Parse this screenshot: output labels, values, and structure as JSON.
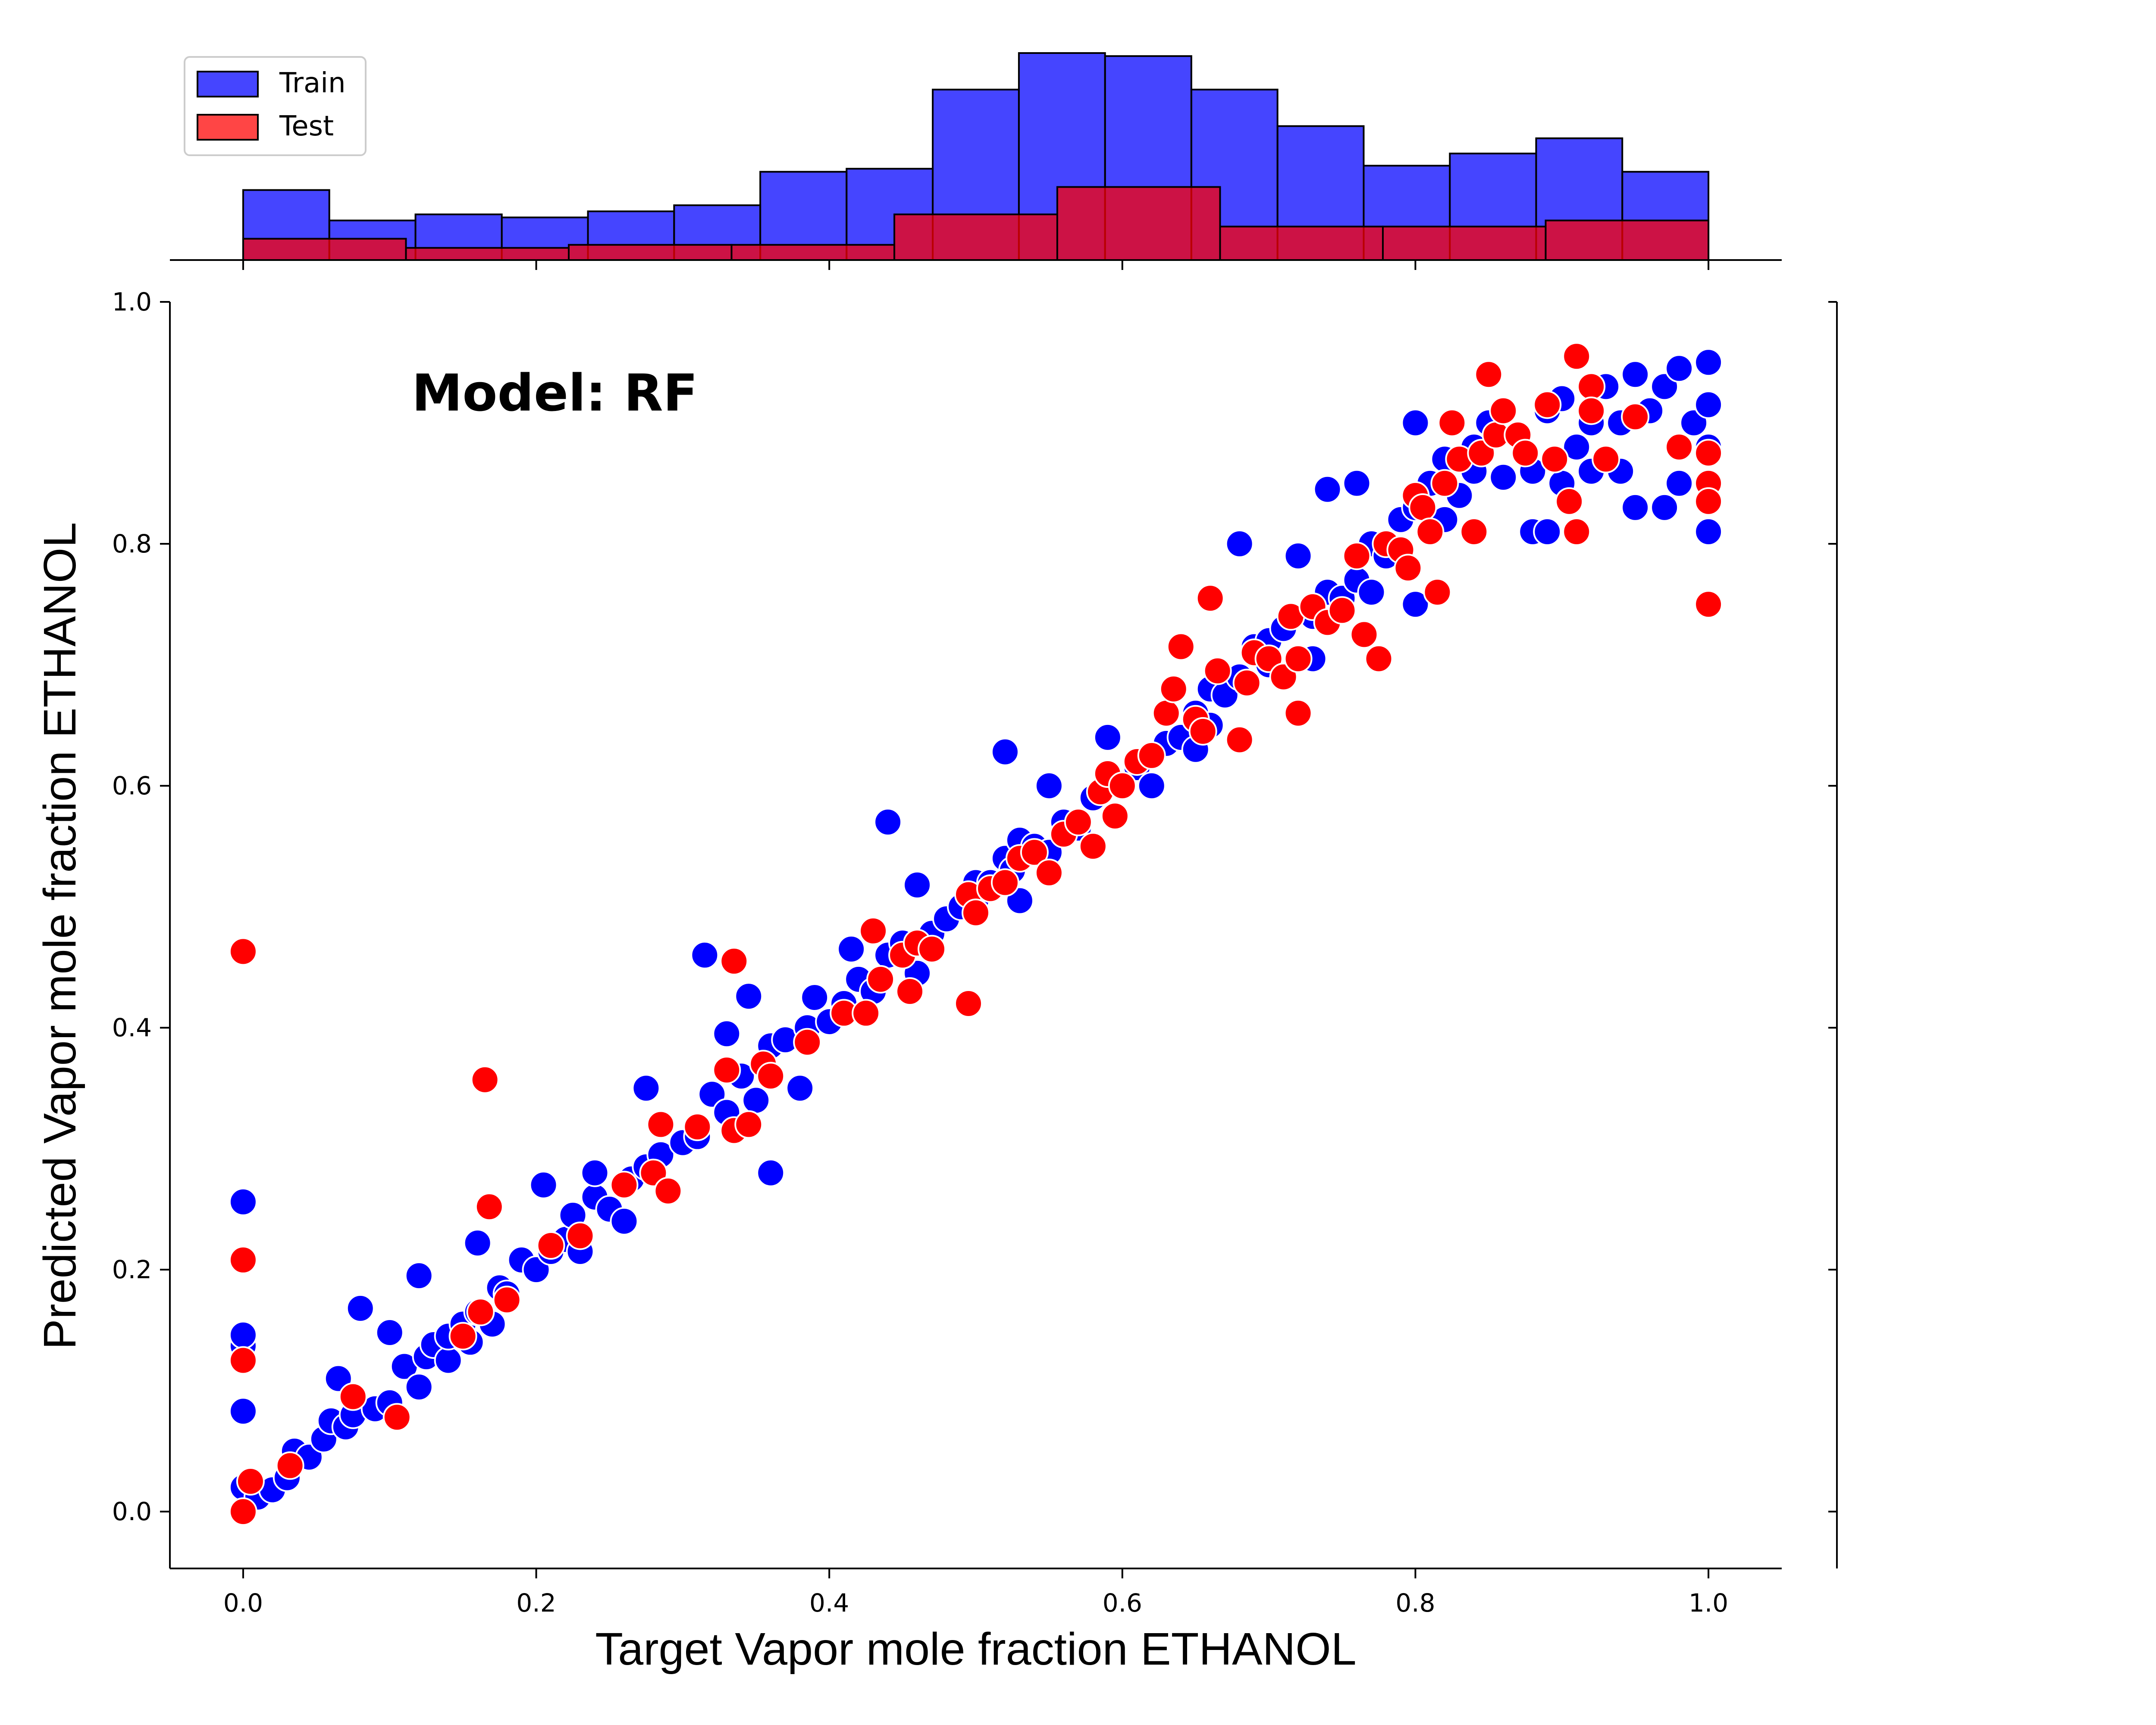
{
  "chart_data": {
    "type": "scatter",
    "xlabel": "Target Vapor mole fraction ETHANOL",
    "ylabel": "Predicted Vapor mole fraction ETHANOL",
    "annotation": "Model: RF",
    "xlim": [
      -0.05,
      1.05
    ],
    "ylim": [
      -0.047,
      1.0
    ],
    "x_ticks": [
      "0.0",
      "0.2",
      "0.4",
      "0.6",
      "0.8",
      "1.0"
    ],
    "y_ticks": [
      "0.0",
      "0.2",
      "0.4",
      "0.6",
      "0.8",
      "1.0"
    ],
    "grid": false,
    "legend": {
      "placement": "top-left of marginal histogram",
      "entries": [
        {
          "name": "Train",
          "color": "#0000ff"
        },
        {
          "name": "Test",
          "color": "#ff0000"
        }
      ]
    },
    "series": [
      {
        "name": "Train",
        "color": "#0000ff",
        "points": [
          [
            0.0,
            0.0
          ],
          [
            0.0,
            0.02
          ],
          [
            0.0,
            0.083
          ],
          [
            0.0,
            0.125
          ],
          [
            0.0,
            0.137
          ],
          [
            0.0,
            0.146
          ],
          [
            0.0,
            0.256
          ],
          [
            0.01,
            0.012
          ],
          [
            0.02,
            0.018
          ],
          [
            0.03,
            0.028
          ],
          [
            0.035,
            0.05
          ],
          [
            0.045,
            0.045
          ],
          [
            0.055,
            0.06
          ],
          [
            0.06,
            0.075
          ],
          [
            0.065,
            0.11
          ],
          [
            0.07,
            0.07
          ],
          [
            0.075,
            0.08
          ],
          [
            0.08,
            0.168
          ],
          [
            0.09,
            0.085
          ],
          [
            0.1,
            0.148
          ],
          [
            0.1,
            0.09
          ],
          [
            0.11,
            0.12
          ],
          [
            0.12,
            0.103
          ],
          [
            0.12,
            0.195
          ],
          [
            0.125,
            0.128
          ],
          [
            0.13,
            0.138
          ],
          [
            0.14,
            0.125
          ],
          [
            0.14,
            0.145
          ],
          [
            0.15,
            0.155
          ],
          [
            0.155,
            0.14
          ],
          [
            0.16,
            0.165
          ],
          [
            0.16,
            0.222
          ],
          [
            0.17,
            0.155
          ],
          [
            0.175,
            0.185
          ],
          [
            0.18,
            0.18
          ],
          [
            0.19,
            0.208
          ],
          [
            0.2,
            0.2
          ],
          [
            0.205,
            0.27
          ],
          [
            0.21,
            0.215
          ],
          [
            0.22,
            0.225
          ],
          [
            0.225,
            0.245
          ],
          [
            0.23,
            0.215
          ],
          [
            0.24,
            0.26
          ],
          [
            0.24,
            0.28
          ],
          [
            0.25,
            0.25
          ],
          [
            0.26,
            0.24
          ],
          [
            0.265,
            0.275
          ],
          [
            0.275,
            0.285
          ],
          [
            0.275,
            0.35
          ],
          [
            0.285,
            0.295
          ],
          [
            0.3,
            0.305
          ],
          [
            0.31,
            0.31
          ],
          [
            0.315,
            0.46
          ],
          [
            0.32,
            0.345
          ],
          [
            0.33,
            0.33
          ],
          [
            0.33,
            0.395
          ],
          [
            0.34,
            0.36
          ],
          [
            0.345,
            0.426
          ],
          [
            0.35,
            0.34
          ],
          [
            0.36,
            0.385
          ],
          [
            0.36,
            0.28
          ],
          [
            0.37,
            0.39
          ],
          [
            0.38,
            0.35
          ],
          [
            0.385,
            0.4
          ],
          [
            0.39,
            0.425
          ],
          [
            0.4,
            0.405
          ],
          [
            0.41,
            0.42
          ],
          [
            0.415,
            0.465
          ],
          [
            0.42,
            0.44
          ],
          [
            0.43,
            0.43
          ],
          [
            0.44,
            0.46
          ],
          [
            0.44,
            0.57
          ],
          [
            0.45,
            0.47
          ],
          [
            0.46,
            0.445
          ],
          [
            0.46,
            0.518
          ],
          [
            0.47,
            0.478
          ],
          [
            0.48,
            0.49
          ],
          [
            0.49,
            0.5
          ],
          [
            0.5,
            0.505
          ],
          [
            0.5,
            0.52
          ],
          [
            0.51,
            0.52
          ],
          [
            0.52,
            0.54
          ],
          [
            0.52,
            0.628
          ],
          [
            0.525,
            0.53
          ],
          [
            0.53,
            0.505
          ],
          [
            0.53,
            0.555
          ],
          [
            0.54,
            0.55
          ],
          [
            0.55,
            0.6
          ],
          [
            0.55,
            0.545
          ],
          [
            0.56,
            0.57
          ],
          [
            0.57,
            0.565
          ],
          [
            0.58,
            0.59
          ],
          [
            0.59,
            0.64
          ],
          [
            0.59,
            0.605
          ],
          [
            0.6,
            0.6
          ],
          [
            0.61,
            0.615
          ],
          [
            0.62,
            0.6
          ],
          [
            0.62,
            0.625
          ],
          [
            0.63,
            0.635
          ],
          [
            0.64,
            0.64
          ],
          [
            0.65,
            0.66
          ],
          [
            0.65,
            0.63
          ],
          [
            0.66,
            0.68
          ],
          [
            0.66,
            0.65
          ],
          [
            0.67,
            0.675
          ],
          [
            0.68,
            0.69
          ],
          [
            0.68,
            0.8
          ],
          [
            0.69,
            0.715
          ],
          [
            0.7,
            0.72
          ],
          [
            0.7,
            0.7
          ],
          [
            0.71,
            0.73
          ],
          [
            0.72,
            0.79
          ],
          [
            0.73,
            0.74
          ],
          [
            0.73,
            0.705
          ],
          [
            0.74,
            0.76
          ],
          [
            0.74,
            0.845
          ],
          [
            0.75,
            0.755
          ],
          [
            0.76,
            0.85
          ],
          [
            0.76,
            0.77
          ],
          [
            0.77,
            0.76
          ],
          [
            0.77,
            0.8
          ],
          [
            0.78,
            0.79
          ],
          [
            0.79,
            0.82
          ],
          [
            0.8,
            0.83
          ],
          [
            0.8,
            0.9
          ],
          [
            0.8,
            0.75
          ],
          [
            0.81,
            0.85
          ],
          [
            0.82,
            0.87
          ],
          [
            0.82,
            0.82
          ],
          [
            0.83,
            0.84
          ],
          [
            0.84,
            0.88
          ],
          [
            0.84,
            0.86
          ],
          [
            0.85,
            0.9
          ],
          [
            0.86,
            0.855
          ],
          [
            0.87,
            0.89
          ],
          [
            0.88,
            0.86
          ],
          [
            0.88,
            0.81
          ],
          [
            0.89,
            0.91
          ],
          [
            0.89,
            0.81
          ],
          [
            0.9,
            0.92
          ],
          [
            0.9,
            0.85
          ],
          [
            0.91,
            0.88
          ],
          [
            0.92,
            0.9
          ],
          [
            0.92,
            0.86
          ],
          [
            0.93,
            0.93
          ],
          [
            0.94,
            0.9
          ],
          [
            0.94,
            0.86
          ],
          [
            0.95,
            0.94
          ],
          [
            0.95,
            0.83
          ],
          [
            0.96,
            0.91
          ],
          [
            0.97,
            0.93
          ],
          [
            0.97,
            0.83
          ],
          [
            0.98,
            0.945
          ],
          [
            0.98,
            0.85
          ],
          [
            0.99,
            0.9
          ],
          [
            1.0,
            0.95
          ],
          [
            1.0,
            0.915
          ],
          [
            1.0,
            0.88
          ],
          [
            1.0,
            0.81
          ]
        ]
      },
      {
        "name": "Test",
        "color": "#ff0000",
        "points": [
          [
            0.0,
            0.0
          ],
          [
            0.0,
            0.125
          ],
          [
            0.0,
            0.208
          ],
          [
            0.0,
            0.463
          ],
          [
            0.005,
            0.025
          ],
          [
            0.032,
            0.038
          ],
          [
            0.075,
            0.095
          ],
          [
            0.105,
            0.078
          ],
          [
            0.15,
            0.145
          ],
          [
            0.162,
            0.165
          ],
          [
            0.165,
            0.357
          ],
          [
            0.168,
            0.252
          ],
          [
            0.18,
            0.175
          ],
          [
            0.21,
            0.22
          ],
          [
            0.23,
            0.228
          ],
          [
            0.26,
            0.27
          ],
          [
            0.28,
            0.28
          ],
          [
            0.285,
            0.32
          ],
          [
            0.29,
            0.265
          ],
          [
            0.31,
            0.318
          ],
          [
            0.33,
            0.365
          ],
          [
            0.335,
            0.315
          ],
          [
            0.335,
            0.455
          ],
          [
            0.345,
            0.32
          ],
          [
            0.355,
            0.37
          ],
          [
            0.36,
            0.36
          ],
          [
            0.385,
            0.388
          ],
          [
            0.41,
            0.412
          ],
          [
            0.425,
            0.412
          ],
          [
            0.43,
            0.48
          ],
          [
            0.435,
            0.44
          ],
          [
            0.45,
            0.46
          ],
          [
            0.455,
            0.43
          ],
          [
            0.46,
            0.47
          ],
          [
            0.47,
            0.465
          ],
          [
            0.495,
            0.42
          ],
          [
            0.495,
            0.51
          ],
          [
            0.5,
            0.495
          ],
          [
            0.51,
            0.515
          ],
          [
            0.52,
            0.52
          ],
          [
            0.53,
            0.54
          ],
          [
            0.54,
            0.545
          ],
          [
            0.55,
            0.528
          ],
          [
            0.56,
            0.56
          ],
          [
            0.57,
            0.57
          ],
          [
            0.58,
            0.55
          ],
          [
            0.585,
            0.595
          ],
          [
            0.59,
            0.61
          ],
          [
            0.595,
            0.575
          ],
          [
            0.6,
            0.6
          ],
          [
            0.61,
            0.62
          ],
          [
            0.62,
            0.625
          ],
          [
            0.63,
            0.66
          ],
          [
            0.635,
            0.68
          ],
          [
            0.64,
            0.715
          ],
          [
            0.65,
            0.655
          ],
          [
            0.655,
            0.645
          ],
          [
            0.66,
            0.755
          ],
          [
            0.665,
            0.695
          ],
          [
            0.68,
            0.638
          ],
          [
            0.685,
            0.685
          ],
          [
            0.69,
            0.71
          ],
          [
            0.7,
            0.705
          ],
          [
            0.71,
            0.69
          ],
          [
            0.715,
            0.74
          ],
          [
            0.72,
            0.66
          ],
          [
            0.72,
            0.705
          ],
          [
            0.73,
            0.748
          ],
          [
            0.74,
            0.735
          ],
          [
            0.75,
            0.745
          ],
          [
            0.76,
            0.79
          ],
          [
            0.765,
            0.725
          ],
          [
            0.775,
            0.705
          ],
          [
            0.78,
            0.8
          ],
          [
            0.79,
            0.795
          ],
          [
            0.795,
            0.78
          ],
          [
            0.8,
            0.84
          ],
          [
            0.805,
            0.83
          ],
          [
            0.81,
            0.81
          ],
          [
            0.815,
            0.76
          ],
          [
            0.82,
            0.85
          ],
          [
            0.825,
            0.9
          ],
          [
            0.83,
            0.87
          ],
          [
            0.84,
            0.81
          ],
          [
            0.845,
            0.875
          ],
          [
            0.85,
            0.94
          ],
          [
            0.855,
            0.89
          ],
          [
            0.86,
            0.91
          ],
          [
            0.87,
            0.89
          ],
          [
            0.875,
            0.875
          ],
          [
            0.89,
            0.915
          ],
          [
            0.895,
            0.87
          ],
          [
            0.905,
            0.835
          ],
          [
            0.91,
            0.955
          ],
          [
            0.91,
            0.81
          ],
          [
            0.92,
            0.93
          ],
          [
            0.92,
            0.91
          ],
          [
            0.93,
            0.87
          ],
          [
            0.95,
            0.905
          ],
          [
            0.98,
            0.88
          ],
          [
            1.0,
            0.875
          ],
          [
            1.0,
            0.85
          ],
          [
            1.0,
            0.835
          ],
          [
            1.0,
            0.75
          ]
        ]
      }
    ],
    "histogram": {
      "train": {
        "name": "Train",
        "color": "#0000ff",
        "bin_edges": [
          0.0,
          0.0588,
          0.1176,
          0.1765,
          0.2353,
          0.2941,
          0.3529,
          0.4118,
          0.4706,
          0.5294,
          0.5882,
          0.6471,
          0.7059,
          0.7647,
          0.8235,
          0.8824,
          0.9412,
          1.0
        ],
        "counts": [
          23,
          13,
          15,
          14,
          16,
          18,
          29,
          30,
          56,
          68,
          67,
          56,
          44,
          31,
          35,
          40,
          29
        ]
      },
      "test": {
        "name": "Test",
        "color": "#ff0000",
        "bin_edges": [
          0.0,
          0.1111,
          0.2222,
          0.3333,
          0.4444,
          0.5556,
          0.6667,
          0.7778,
          0.8889,
          1.0
        ],
        "counts": [
          7,
          4,
          5,
          5,
          15,
          24,
          11,
          11,
          13
        ]
      }
    }
  }
}
